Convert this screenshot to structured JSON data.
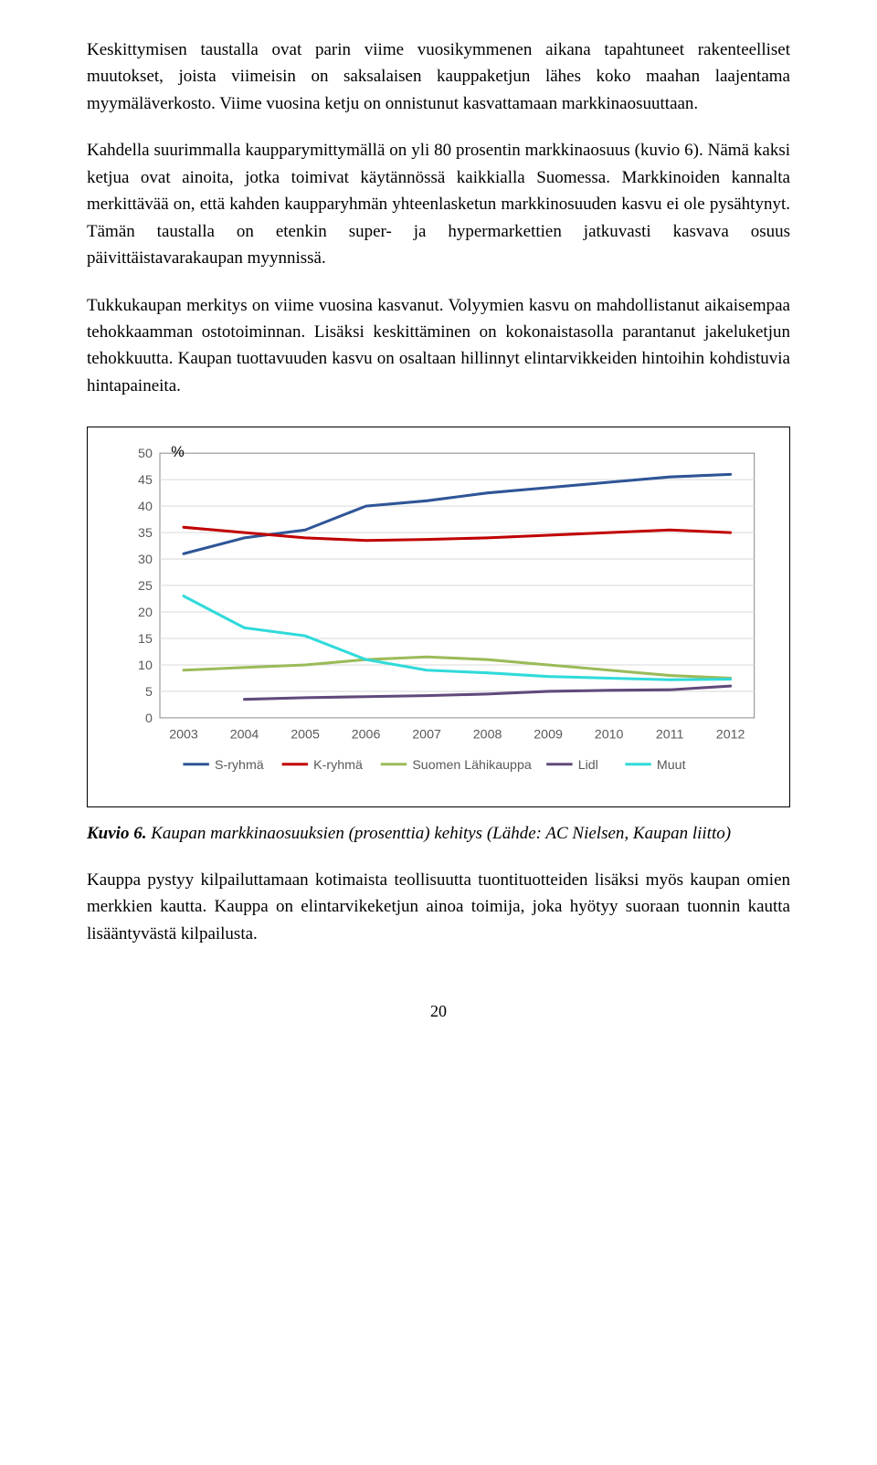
{
  "paragraphs": {
    "p1": "Keskittymisen taustalla ovat parin viime vuosikymmenen aikana tapahtuneet rakenteelliset muutokset, joista viimeisin on saksalaisen kauppaketjun lähes koko maahan laajentama myymäläverkosto. Viime vuosina ketju on onnistunut kasvattamaan markkinaosuuttaan.",
    "p2": "Kahdella suurimmalla kaupparymittymällä on yli 80 prosentin markkinaosuus (kuvio 6). Nämä kaksi ketjua ovat ainoita, jotka toimivat käytännössä kaikkialla Suomessa. Markkinoiden kannalta merkittävää on, että kahden kaupparyhmän yhteenlasketun markkinosuuden kasvu ei ole pysähtynyt. Tämän taustalla on etenkin super- ja hypermarkettien jatkuvasti kasvava osuus päivittäistavarakaupan myynnissä.",
    "p3": "Tukkukaupan merkitys on viime vuosina kasvanut. Volyymien kasvu on mahdollistanut aikaisempaa tehokkaamman ostotoiminnan. Lisäksi keskittäminen on kokonaistasolla parantanut jakeluketjun tehokkuutta. Kaupan tuottavuuden kasvu on osaltaan hillinnyt elintarvikkeiden hintoihin kohdistuvia hintapaineita.",
    "p4": "Kauppa pystyy kilpailuttamaan kotimaista teollisuutta tuontituotteiden lisäksi myös kaupan omien merkkien kautta. Kauppa on elintarvikeketjun ainoa toimija, joka hyötyy suoraan tuonnin kautta lisääntyvästä kilpailusta."
  },
  "caption": {
    "lead": "Kuvio 6.",
    "rest": " Kaupan markkinaosuuksien (prosenttia) kehitys (Lähde: AC Nielsen, Kaupan liitto)"
  },
  "chart": {
    "type": "line",
    "x_categories": [
      "2003",
      "2004",
      "2005",
      "2006",
      "2007",
      "2008",
      "2009",
      "2010",
      "2011",
      "2012"
    ],
    "y_unit_label": "%",
    "ylim": [
      0,
      50
    ],
    "ytick_step": 5,
    "yticks": [
      0,
      5,
      10,
      15,
      20,
      25,
      30,
      35,
      40,
      45,
      50
    ],
    "grid_color": "#d9d9d9",
    "border_color": "#8a8a8a",
    "background_color": "#ffffff",
    "axis_font_size": 14,
    "legend_font_size": 14,
    "line_width": 3,
    "series": [
      {
        "name": "S-ryhmä",
        "color": "#2f5597",
        "values": [
          31,
          34,
          35.5,
          40,
          41,
          42.5,
          43.5,
          44.5,
          45.5,
          46
        ]
      },
      {
        "name": "K-ryhmä",
        "color": "#c00000",
        "values": [
          36,
          35,
          34,
          33.5,
          33.7,
          34,
          34.5,
          35,
          35.5,
          35
        ]
      },
      {
        "name": "Suomen Lähikauppa",
        "color": "#9bbb59",
        "values": [
          9,
          9.5,
          10,
          11,
          11.5,
          11,
          10,
          9,
          8,
          7.5
        ]
      },
      {
        "name": "Lidl",
        "color": "#604a7b",
        "values": [
          null,
          3.5,
          3.8,
          4,
          4.2,
          4.5,
          5,
          5.2,
          5.3,
          6
        ]
      },
      {
        "name": "Muut",
        "color": "#31dada",
        "values": [
          23,
          17,
          15.5,
          11,
          9,
          8.5,
          7.8,
          7.5,
          7.2,
          7.3
        ]
      }
    ]
  },
  "page_number": "20"
}
